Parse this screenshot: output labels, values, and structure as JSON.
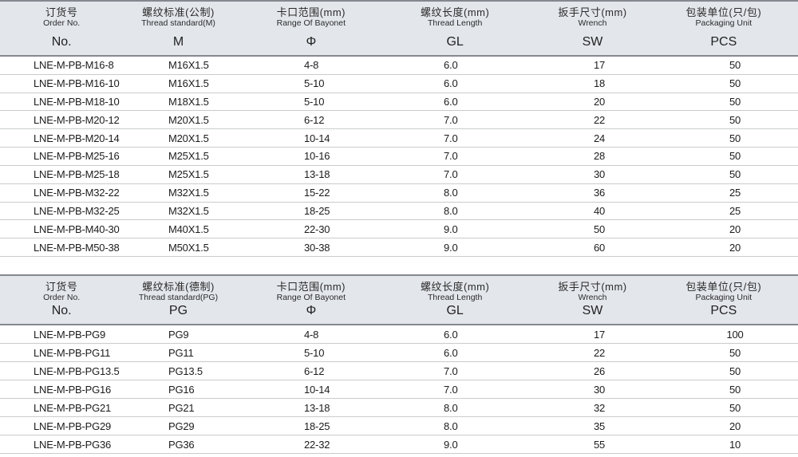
{
  "colors": {
    "page_bg": "#ffffff",
    "header_bg": "#e3e6eb",
    "border_dark": "#84888f",
    "row_line": "#c9cbcd",
    "text_dark": "#1c1c1c"
  },
  "tables": [
    {
      "name": "metric-thread-table",
      "columns": [
        {
          "key": "no",
          "cn": "订货号",
          "en": "Order No.",
          "code": "No."
        },
        {
          "key": "m",
          "cn": "螺纹标准(公制)",
          "en": "Thread standard(M)",
          "code": "M"
        },
        {
          "key": "phi",
          "cn": "卡口范围(mm)",
          "en": "Range Of Bayonet",
          "code": "Φ"
        },
        {
          "key": "gl",
          "cn": "螺纹长度(mm)",
          "en": "Thread Length",
          "code": "GL"
        },
        {
          "key": "sw",
          "cn": "扳手尺寸(mm)",
          "en": "Wrench",
          "code": "SW"
        },
        {
          "key": "pcs",
          "cn": "包装单位(只/包)",
          "en": "Packaging Unit",
          "code": "PCS"
        }
      ],
      "rows": [
        [
          "LNE-M-PB-M16-8",
          "M16X1.5",
          "4-8",
          "6.0",
          "17",
          "50"
        ],
        [
          "LNE-M-PB-M16-10",
          "M16X1.5",
          "5-10",
          "6.0",
          "18",
          "50"
        ],
        [
          "LNE-M-PB-M18-10",
          "M18X1.5",
          "5-10",
          "6.0",
          "20",
          "50"
        ],
        [
          "LNE-M-PB-M20-12",
          "M20X1.5",
          "6-12",
          "7.0",
          "22",
          "50"
        ],
        [
          "LNE-M-PB-M20-14",
          "M20X1.5",
          "10-14",
          "7.0",
          "24",
          "50"
        ],
        [
          "LNE-M-PB-M25-16",
          "M25X1.5",
          "10-16",
          "7.0",
          "28",
          "50"
        ],
        [
          "LNE-M-PB-M25-18",
          "M25X1.5",
          "13-18",
          "7.0",
          "30",
          "50"
        ],
        [
          "LNE-M-PB-M32-22",
          "M32X1.5",
          "15-22",
          "8.0",
          "36",
          "25"
        ],
        [
          "LNE-M-PB-M32-25",
          "M32X1.5",
          "18-25",
          "8.0",
          "40",
          "25"
        ],
        [
          "LNE-M-PB-M40-30",
          "M40X1.5",
          "22-30",
          "9.0",
          "50",
          "20"
        ],
        [
          "LNE-M-PB-M50-38",
          "M50X1.5",
          "30-38",
          "9.0",
          "60",
          "20"
        ]
      ]
    },
    {
      "name": "pg-thread-table",
      "columns": [
        {
          "key": "no",
          "cn": "订货号",
          "en": "Order No.",
          "code": "No."
        },
        {
          "key": "pg",
          "cn": "螺纹标准(德制)",
          "en": "Thread standard(PG)",
          "code": "PG"
        },
        {
          "key": "phi",
          "cn": "卡口范围(mm)",
          "en": "Range Of Bayonet",
          "code": "Φ"
        },
        {
          "key": "gl",
          "cn": "螺纹长度(mm)",
          "en": "Thread Length",
          "code": "GL"
        },
        {
          "key": "sw",
          "cn": "扳手尺寸(mm)",
          "en": "Wrench",
          "code": "SW"
        },
        {
          "key": "pcs",
          "cn": "包装单位(只/包)",
          "en": "Packaging Unit",
          "code": "PCS"
        }
      ],
      "rows": [
        [
          "LNE-M-PB-PG9",
          "PG9",
          "4-8",
          "6.0",
          "17",
          "100"
        ],
        [
          "LNE-M-PB-PG11",
          "PG11",
          "5-10",
          "6.0",
          "22",
          "50"
        ],
        [
          "LNE-M-PB-PG13.5",
          "PG13.5",
          "6-12",
          "7.0",
          "26",
          "50"
        ],
        [
          "LNE-M-PB-PG16",
          "PG16",
          "10-14",
          "7.0",
          "30",
          "50"
        ],
        [
          "LNE-M-PB-PG21",
          "PG21",
          "13-18",
          "8.0",
          "32",
          "50"
        ],
        [
          "LNE-M-PB-PG29",
          "PG29",
          "18-25",
          "8.0",
          "35",
          "20"
        ],
        [
          "LNE-M-PB-PG36",
          "PG36",
          "22-32",
          "9.0",
          "55",
          "10"
        ]
      ]
    }
  ]
}
